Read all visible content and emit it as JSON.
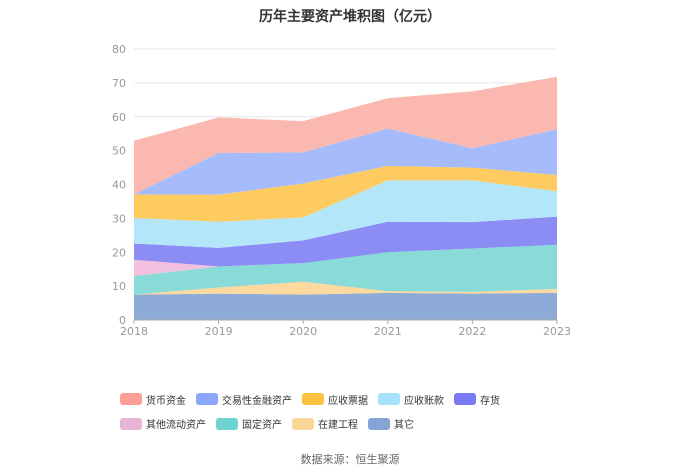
{
  "page": {
    "title": "历年主要资产堆积图（亿元）",
    "source": "数据来源：恒生聚源"
  },
  "chart_data": {
    "type": "area",
    "stacked": true,
    "title": "历年主要资产堆积图（亿元）",
    "x": [
      "2018",
      "2019",
      "2020",
      "2021",
      "2022",
      "2023"
    ],
    "ylim": [
      0,
      80
    ],
    "yticks": [
      0,
      10,
      20,
      30,
      40,
      50,
      60,
      70,
      80
    ],
    "grid": true,
    "legend_position": "bottom",
    "series": [
      {
        "name": "其它",
        "color": "#8eaad6",
        "values": [
          7.5,
          7.8,
          7.5,
          8.0,
          7.8,
          8.0
        ]
      },
      {
        "name": "在建工程",
        "color": "#fdd9a0",
        "values": [
          0.0,
          1.8,
          3.8,
          0.5,
          0.5,
          1.2
        ]
      },
      {
        "name": "固定资产",
        "color": "#88dbd6",
        "values": [
          5.5,
          6.2,
          5.5,
          11.5,
          12.8,
          13.0
        ]
      },
      {
        "name": "其他流动资产",
        "color": "#f2c1df",
        "values": [
          4.8,
          0.0,
          0.0,
          0.0,
          0.0,
          0.0
        ]
      },
      {
        "name": "存货",
        "color": "#8c8cf5",
        "values": [
          4.8,
          5.5,
          6.7,
          9.0,
          7.8,
          8.3
        ]
      },
      {
        "name": "应收账款",
        "color": "#b4e6fa",
        "values": [
          7.5,
          7.7,
          6.8,
          12.2,
          12.3,
          7.5
        ]
      },
      {
        "name": "应收票据",
        "color": "#fdcb5f",
        "values": [
          7.0,
          8.0,
          10.0,
          4.3,
          3.8,
          4.8
        ]
      },
      {
        "name": "交易性金融资产",
        "color": "#a5bbfb",
        "values": [
          0.0,
          12.3,
          9.2,
          11.0,
          5.7,
          13.5
        ]
      },
      {
        "name": "货币资金",
        "color": "#fbb8b0",
        "values": [
          15.8,
          10.5,
          9.2,
          9.0,
          16.8,
          15.5
        ]
      }
    ],
    "legend_order": [
      "货币资金",
      "交易性金融资产",
      "应收票据",
      "应收账款",
      "存货",
      "其他流动资产",
      "固定资产",
      "在建工程",
      "其它"
    ],
    "legend_colors": {
      "货币资金": "#fc9f95",
      "交易性金融资产": "#8aa7f8",
      "应收票据": "#fbc33f",
      "应收账款": "#a6e3fb",
      "存货": "#7a7af4",
      "其他流动资产": "#e8b4d8",
      "固定资产": "#6fd4cf",
      "在建工程": "#fdd79a",
      "其它": "#86a4d3"
    }
  }
}
